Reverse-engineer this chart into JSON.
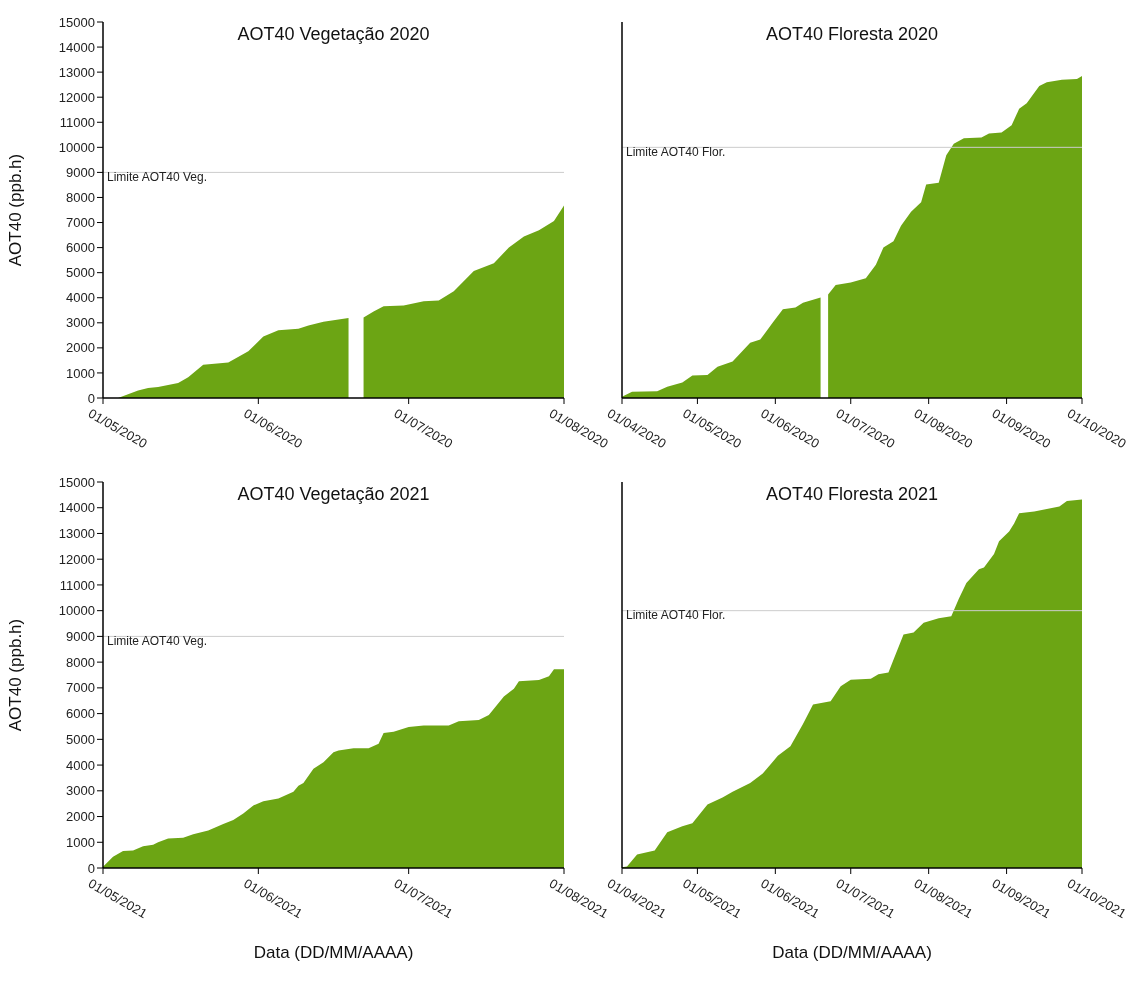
{
  "chart_data": [
    {
      "type": "area",
      "title": "AOT40 Vegetação 2020",
      "ylabel": "AOT40 (ppb.h)",
      "color": "#6ca514",
      "tick_labels": true,
      "x": [
        "2020-05-01",
        "2020-05-04",
        "2020-05-08",
        "2020-05-10",
        "2020-05-12",
        "2020-05-14",
        "2020-05-16",
        "2020-05-18",
        "2020-05-21",
        "2020-05-26",
        "2020-05-30",
        "2020-06-02",
        "2020-06-05",
        "2020-06-09",
        "2020-06-11",
        "2020-06-14",
        "2020-06-19",
        "2020-06-20",
        "2020-06-21",
        "2020-06-22",
        "2020-06-24",
        "2020-06-26",
        "2020-06-30",
        "2020-07-04",
        "2020-07-07",
        "2020-07-10",
        "2020-07-14",
        "2020-07-18",
        "2020-07-21",
        "2020-07-24",
        "2020-07-27",
        "2020-07-30",
        "2020-08-01"
      ],
      "values": [
        0,
        0,
        300,
        400,
        440,
        520,
        600,
        830,
        1330,
        1420,
        1870,
        2450,
        2700,
        2760,
        2890,
        3040,
        3190,
        null,
        null,
        3210,
        3450,
        3660,
        3690,
        3860,
        3890,
        4260,
        5070,
        5380,
        6000,
        6440,
        6690,
        7060,
        7680
      ],
      "xlim": [
        "2020-05-01",
        "2020-08-01"
      ],
      "xticks": [
        {
          "value": "2020-05-01",
          "label": "01/05/2020"
        },
        {
          "value": "2020-06-01",
          "label": "01/06/2020"
        },
        {
          "value": "2020-07-01",
          "label": "01/07/2020"
        },
        {
          "value": "2020-08-01",
          "label": "01/08/2020"
        }
      ],
      "ylim": [
        0,
        15000
      ],
      "yticks": [
        0,
        1000,
        2000,
        3000,
        4000,
        5000,
        6000,
        7000,
        8000,
        9000,
        10000,
        11000,
        12000,
        13000,
        14000,
        15000
      ],
      "ref_lines": [
        {
          "axis": "y",
          "value": 9000,
          "label": "Limite AOT40 Veg.",
          "color": "#cccccc"
        }
      ]
    },
    {
      "type": "area",
      "title": "AOT40 Floresta 2020",
      "color": "#6ca514",
      "tick_labels": "x",
      "x": [
        "2020-04-01",
        "2020-04-05",
        "2020-04-15",
        "2020-04-19",
        "2020-04-25",
        "2020-04-29",
        "2020-05-05",
        "2020-05-09",
        "2020-05-15",
        "2020-05-22",
        "2020-05-26",
        "2020-05-31",
        "2020-06-04",
        "2020-06-09",
        "2020-06-12",
        "2020-06-19",
        "2020-06-20",
        "2020-06-21",
        "2020-06-22",
        "2020-06-25",
        "2020-07-01",
        "2020-07-07",
        "2020-07-11",
        "2020-07-14",
        "2020-07-18",
        "2020-07-21",
        "2020-07-25",
        "2020-07-29",
        "2020-07-31",
        "2020-08-05",
        "2020-08-08",
        "2020-08-11",
        "2020-08-15",
        "2020-08-22",
        "2020-08-25",
        "2020-08-30",
        "2020-09-03",
        "2020-09-06",
        "2020-09-09",
        "2020-09-14",
        "2020-09-17",
        "2020-09-23",
        "2020-09-29",
        "2020-10-01"
      ],
      "values": [
        50,
        250,
        270,
        450,
        620,
        900,
        920,
        1250,
        1460,
        2200,
        2330,
        3010,
        3540,
        3610,
        3800,
        4010,
        null,
        null,
        4130,
        4510,
        4610,
        4780,
        5320,
        6000,
        6250,
        6870,
        7430,
        7810,
        8520,
        8590,
        9680,
        10140,
        10360,
        10390,
        10550,
        10590,
        10880,
        11540,
        11760,
        12450,
        12600,
        12700,
        12730,
        12850
      ],
      "xlim": [
        "2020-04-01",
        "2020-10-01"
      ],
      "xticks": [
        {
          "value": "2020-04-01",
          "label": "01/04/2020"
        },
        {
          "value": "2020-05-01",
          "label": "01/05/2020"
        },
        {
          "value": "2020-06-01",
          "label": "01/06/2020"
        },
        {
          "value": "2020-07-01",
          "label": "01/07/2020"
        },
        {
          "value": "2020-08-01",
          "label": "01/08/2020"
        },
        {
          "value": "2020-09-01",
          "label": "01/09/2020"
        },
        {
          "value": "2020-10-01",
          "label": "01/10/2020"
        }
      ],
      "ylim": [
        0,
        15000
      ],
      "yticks": [
        0,
        1000,
        2000,
        3000,
        4000,
        5000,
        6000,
        7000,
        8000,
        9000,
        10000,
        11000,
        12000,
        13000,
        14000,
        15000
      ],
      "ref_lines": [
        {
          "axis": "y",
          "value": 10000,
          "label": "Limite AOT40 Flor.",
          "color": "#cccccc"
        }
      ]
    },
    {
      "type": "area",
      "title": "AOT40 Vegetação 2021",
      "ylabel": "AOT40 (ppb.h)",
      "xlabel": "Data (DD/MM/AAAA)",
      "color": "#6ca514",
      "tick_labels": true,
      "x": [
        "2021-05-01",
        "2021-05-03",
        "2021-05-05",
        "2021-05-07",
        "2021-05-09",
        "2021-05-11",
        "2021-05-12",
        "2021-05-14",
        "2021-05-17",
        "2021-05-19",
        "2021-05-22",
        "2021-05-25",
        "2021-05-27",
        "2021-05-29",
        "2021-05-31",
        "2021-06-02",
        "2021-06-05",
        "2021-06-08",
        "2021-06-09",
        "2021-06-10",
        "2021-06-12",
        "2021-06-14",
        "2021-06-16",
        "2021-06-17",
        "2021-06-20",
        "2021-06-23",
        "2021-06-25",
        "2021-06-26",
        "2021-06-28",
        "2021-07-01",
        "2021-07-04",
        "2021-07-09",
        "2021-07-11",
        "2021-07-15",
        "2021-07-17",
        "2021-07-20",
        "2021-07-22",
        "2021-07-23",
        "2021-07-27",
        "2021-07-29",
        "2021-07-30",
        "2021-08-01"
      ],
      "values": [
        50,
        440,
        660,
        680,
        850,
        900,
        1000,
        1150,
        1180,
        1310,
        1460,
        1710,
        1870,
        2120,
        2430,
        2590,
        2700,
        2960,
        3200,
        3300,
        3860,
        4110,
        4500,
        4570,
        4650,
        4650,
        4830,
        5250,
        5290,
        5480,
        5540,
        5540,
        5700,
        5750,
        5950,
        6660,
        6970,
        7260,
        7310,
        7450,
        7720,
        7720
      ],
      "xlim": [
        "2021-05-01",
        "2021-08-01"
      ],
      "xticks": [
        {
          "value": "2021-05-01",
          "label": "01/05/2021"
        },
        {
          "value": "2021-06-01",
          "label": "01/06/2021"
        },
        {
          "value": "2021-07-01",
          "label": "01/07/2021"
        },
        {
          "value": "2021-08-01",
          "label": "01/08/2021"
        }
      ],
      "ylim": [
        0,
        15000
      ],
      "yticks": [
        0,
        1000,
        2000,
        3000,
        4000,
        5000,
        6000,
        7000,
        8000,
        9000,
        10000,
        11000,
        12000,
        13000,
        14000,
        15000
      ],
      "ref_lines": [
        {
          "axis": "y",
          "value": 9000,
          "label": "Limite AOT40 Veg.",
          "color": "#cccccc"
        }
      ]
    },
    {
      "type": "area",
      "title": "AOT40 Floresta 2021",
      "xlabel": "Data (DD/MM/AAAA)",
      "color": "#6ca514",
      "tick_labels": "x",
      "x": [
        "2021-04-01",
        "2021-04-03",
        "2021-04-07",
        "2021-04-14",
        "2021-04-19",
        "2021-04-25",
        "2021-04-29",
        "2021-05-05",
        "2021-05-11",
        "2021-05-15",
        "2021-05-22",
        "2021-05-27",
        "2021-06-02",
        "2021-06-07",
        "2021-06-12",
        "2021-06-16",
        "2021-06-23",
        "2021-06-27",
        "2021-07-01",
        "2021-07-09",
        "2021-07-12",
        "2021-07-16",
        "2021-07-18",
        "2021-07-22",
        "2021-07-26",
        "2021-07-30",
        "2021-08-05",
        "2021-08-10",
        "2021-08-13",
        "2021-08-16",
        "2021-08-21",
        "2021-08-23",
        "2021-08-27",
        "2021-08-29",
        "2021-09-02",
        "2021-09-04",
        "2021-09-06",
        "2021-09-12",
        "2021-09-16",
        "2021-09-22",
        "2021-09-25",
        "2021-10-01"
      ],
      "values": [
        30,
        60,
        520,
        680,
        1390,
        1620,
        1740,
        2470,
        2740,
        2960,
        3300,
        3670,
        4360,
        4730,
        5600,
        6350,
        6480,
        7060,
        7320,
        7350,
        7530,
        7600,
        8090,
        9070,
        9150,
        9530,
        9710,
        9780,
        10460,
        11080,
        11610,
        11680,
        12200,
        12700,
        13080,
        13390,
        13790,
        13850,
        13930,
        14050,
        14260,
        14320
      ],
      "xlim": [
        "2021-04-01",
        "2021-10-01"
      ],
      "xticks": [
        {
          "value": "2021-04-01",
          "label": "01/04/2021"
        },
        {
          "value": "2021-05-01",
          "label": "01/05/2021"
        },
        {
          "value": "2021-06-01",
          "label": "01/06/2021"
        },
        {
          "value": "2021-07-01",
          "label": "01/07/2021"
        },
        {
          "value": "2021-08-01",
          "label": "01/08/2021"
        },
        {
          "value": "2021-09-01",
          "label": "01/09/2021"
        },
        {
          "value": "2021-10-01",
          "label": "01/10/2021"
        }
      ],
      "ylim": [
        0,
        15000
      ],
      "yticks": [
        0,
        1000,
        2000,
        3000,
        4000,
        5000,
        6000,
        7000,
        8000,
        9000,
        10000,
        11000,
        12000,
        13000,
        14000,
        15000
      ],
      "ref_lines": [
        {
          "axis": "y",
          "value": 10000,
          "label": "Limite AOT40 Flor.",
          "color": "#cccccc"
        }
      ]
    }
  ]
}
